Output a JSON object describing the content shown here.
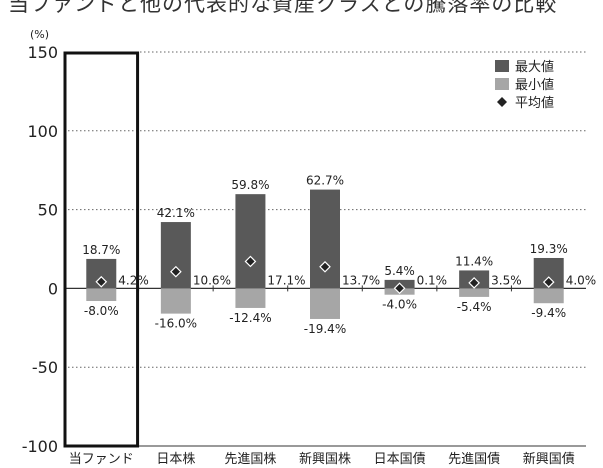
{
  "chart_data": {
    "type": "bar",
    "title": "当ファンドと他の代表的な資産クラスとの騰落率の比較",
    "unit_label": "(%)",
    "categories": [
      "当ファンド",
      "日本株",
      "先進国株",
      "新興国株",
      "日本国債",
      "先進国債",
      "新興国債"
    ],
    "ylim": [
      -100,
      150
    ],
    "yticks": [
      -100,
      -50,
      0,
      50,
      100,
      150
    ],
    "grid": "dotted-horizontal",
    "legend_position": "top-right",
    "highlighted_category": "当ファンド",
    "series": [
      {
        "name": "最大値",
        "kind": "bar",
        "color": "#595959",
        "values": [
          18.7,
          42.1,
          59.8,
          62.7,
          5.4,
          11.4,
          19.3
        ],
        "labels": [
          "18.7%",
          "42.1%",
          "59.8%",
          "62.7%",
          "5.4%",
          "11.4%",
          "19.3%"
        ]
      },
      {
        "name": "最小値",
        "kind": "bar",
        "color": "#a6a6a6",
        "values": [
          -8.0,
          -16.0,
          -12.4,
          -19.4,
          -4.0,
          -5.4,
          -9.4
        ],
        "labels": [
          "-8.0%",
          "-16.0%",
          "-12.4%",
          "-19.4%",
          "-4.0%",
          "-5.4%",
          "-9.4%"
        ]
      },
      {
        "name": "平均値",
        "kind": "marker",
        "color": "#222222",
        "values": [
          4.2,
          10.6,
          17.1,
          13.7,
          0.1,
          3.5,
          4.0
        ],
        "labels": [
          "4.2%",
          "10.6%",
          "17.1%",
          "13.7%",
          "0.1%",
          "3.5%",
          "4.0%"
        ]
      }
    ]
  }
}
